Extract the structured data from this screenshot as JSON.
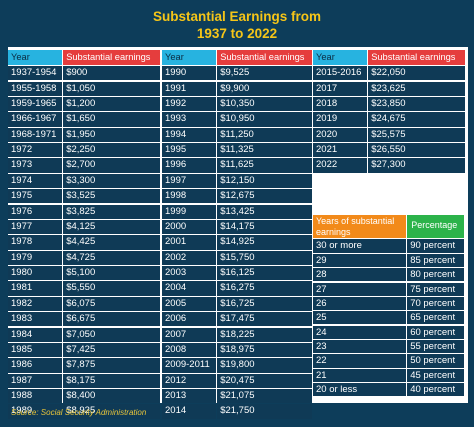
{
  "title_line1": "Substantial Earnings from",
  "title_line2": "1937 to 2022",
  "headers": {
    "year": "Year",
    "earnings": "Substantial earnings"
  },
  "table1": [
    [
      "1937-1954",
      "$900"
    ],
    [
      "1955-1958",
      "$1,050"
    ],
    [
      "1959-1965",
      "$1,200"
    ],
    [
      "1966-1967",
      "$1,650"
    ],
    [
      "1968-1971",
      "$1,950"
    ],
    [
      "1972",
      "$2,250"
    ],
    [
      "1973",
      "$2,700"
    ],
    [
      "1974",
      "$3,300"
    ],
    [
      "1975",
      "$3,525"
    ],
    [
      "1976",
      "$3,825"
    ],
    [
      "1977",
      "$4,125"
    ],
    [
      "1978",
      "$4,425"
    ],
    [
      "1979",
      "$4,725"
    ],
    [
      "1980",
      "$5,100"
    ],
    [
      "1981",
      "$5,550"
    ],
    [
      "1982",
      "$6,075"
    ],
    [
      "1983",
      "$6,675"
    ],
    [
      "1984",
      "$7,050"
    ],
    [
      "1985",
      "$7,425"
    ],
    [
      "1986",
      "$7,875"
    ],
    [
      "1987",
      "$8,175"
    ],
    [
      "1988",
      "$8,400"
    ],
    [
      "1989",
      "$8,925"
    ]
  ],
  "table2": [
    [
      "1990",
      "$9,525"
    ],
    [
      "1991",
      "$9,900"
    ],
    [
      "1992",
      "$10,350"
    ],
    [
      "1993",
      "$10,950"
    ],
    [
      "1994",
      "$11,250"
    ],
    [
      "1995",
      "$11,325"
    ],
    [
      "1996",
      "$11,625"
    ],
    [
      "1997",
      "$12,150"
    ],
    [
      "1998",
      "$12,675"
    ],
    [
      "1999",
      "$13,425"
    ],
    [
      "2000",
      "$14,175"
    ],
    [
      "2001",
      "$14,925"
    ],
    [
      "2002",
      "$15,750"
    ],
    [
      "2003",
      "$16,125"
    ],
    [
      "2004",
      "$16,275"
    ],
    [
      "2005",
      "$16,725"
    ],
    [
      "2006",
      "$17,475"
    ],
    [
      "2007",
      "$18,225"
    ],
    [
      "2008",
      "$18,975"
    ],
    [
      "2009-2011",
      "$19,800"
    ],
    [
      "2012",
      "$20,475"
    ],
    [
      "2013",
      "$21,075"
    ],
    [
      "2014",
      "$21,750"
    ]
  ],
  "table3": [
    [
      "2015-2016",
      "$22,050"
    ],
    [
      "2017",
      "$23,625"
    ],
    [
      "2018",
      "$23,850"
    ],
    [
      "2019",
      "$24,675"
    ],
    [
      "2020",
      "$25,575"
    ],
    [
      "2021",
      "$26,550"
    ],
    [
      "2022",
      "$27,300"
    ]
  ],
  "legend": {
    "header_years": "Years of substantial earnings",
    "header_percentage": "Percentage",
    "rows": [
      [
        "30 or more",
        "90 percent"
      ],
      [
        "29",
        "85 percent"
      ],
      [
        "28",
        "80 percent"
      ],
      [
        "27",
        "75 percent"
      ],
      [
        "26",
        "70 percent"
      ],
      [
        "25",
        "65 percent"
      ],
      [
        "24",
        "60 percent"
      ],
      [
        "23",
        "55 percent"
      ],
      [
        "22",
        "50 percent"
      ],
      [
        "21",
        "45 percent"
      ],
      [
        "20 or less",
        "40 percent"
      ]
    ]
  },
  "source": "Source: Social Security Administration",
  "colors": {
    "background": "#0d3d5a",
    "title": "#f5c518",
    "year_header": "#27b3e0",
    "earnings_header": "#e53d3d",
    "years_header": "#f28a1a",
    "percentage_header": "#2cb34a"
  }
}
